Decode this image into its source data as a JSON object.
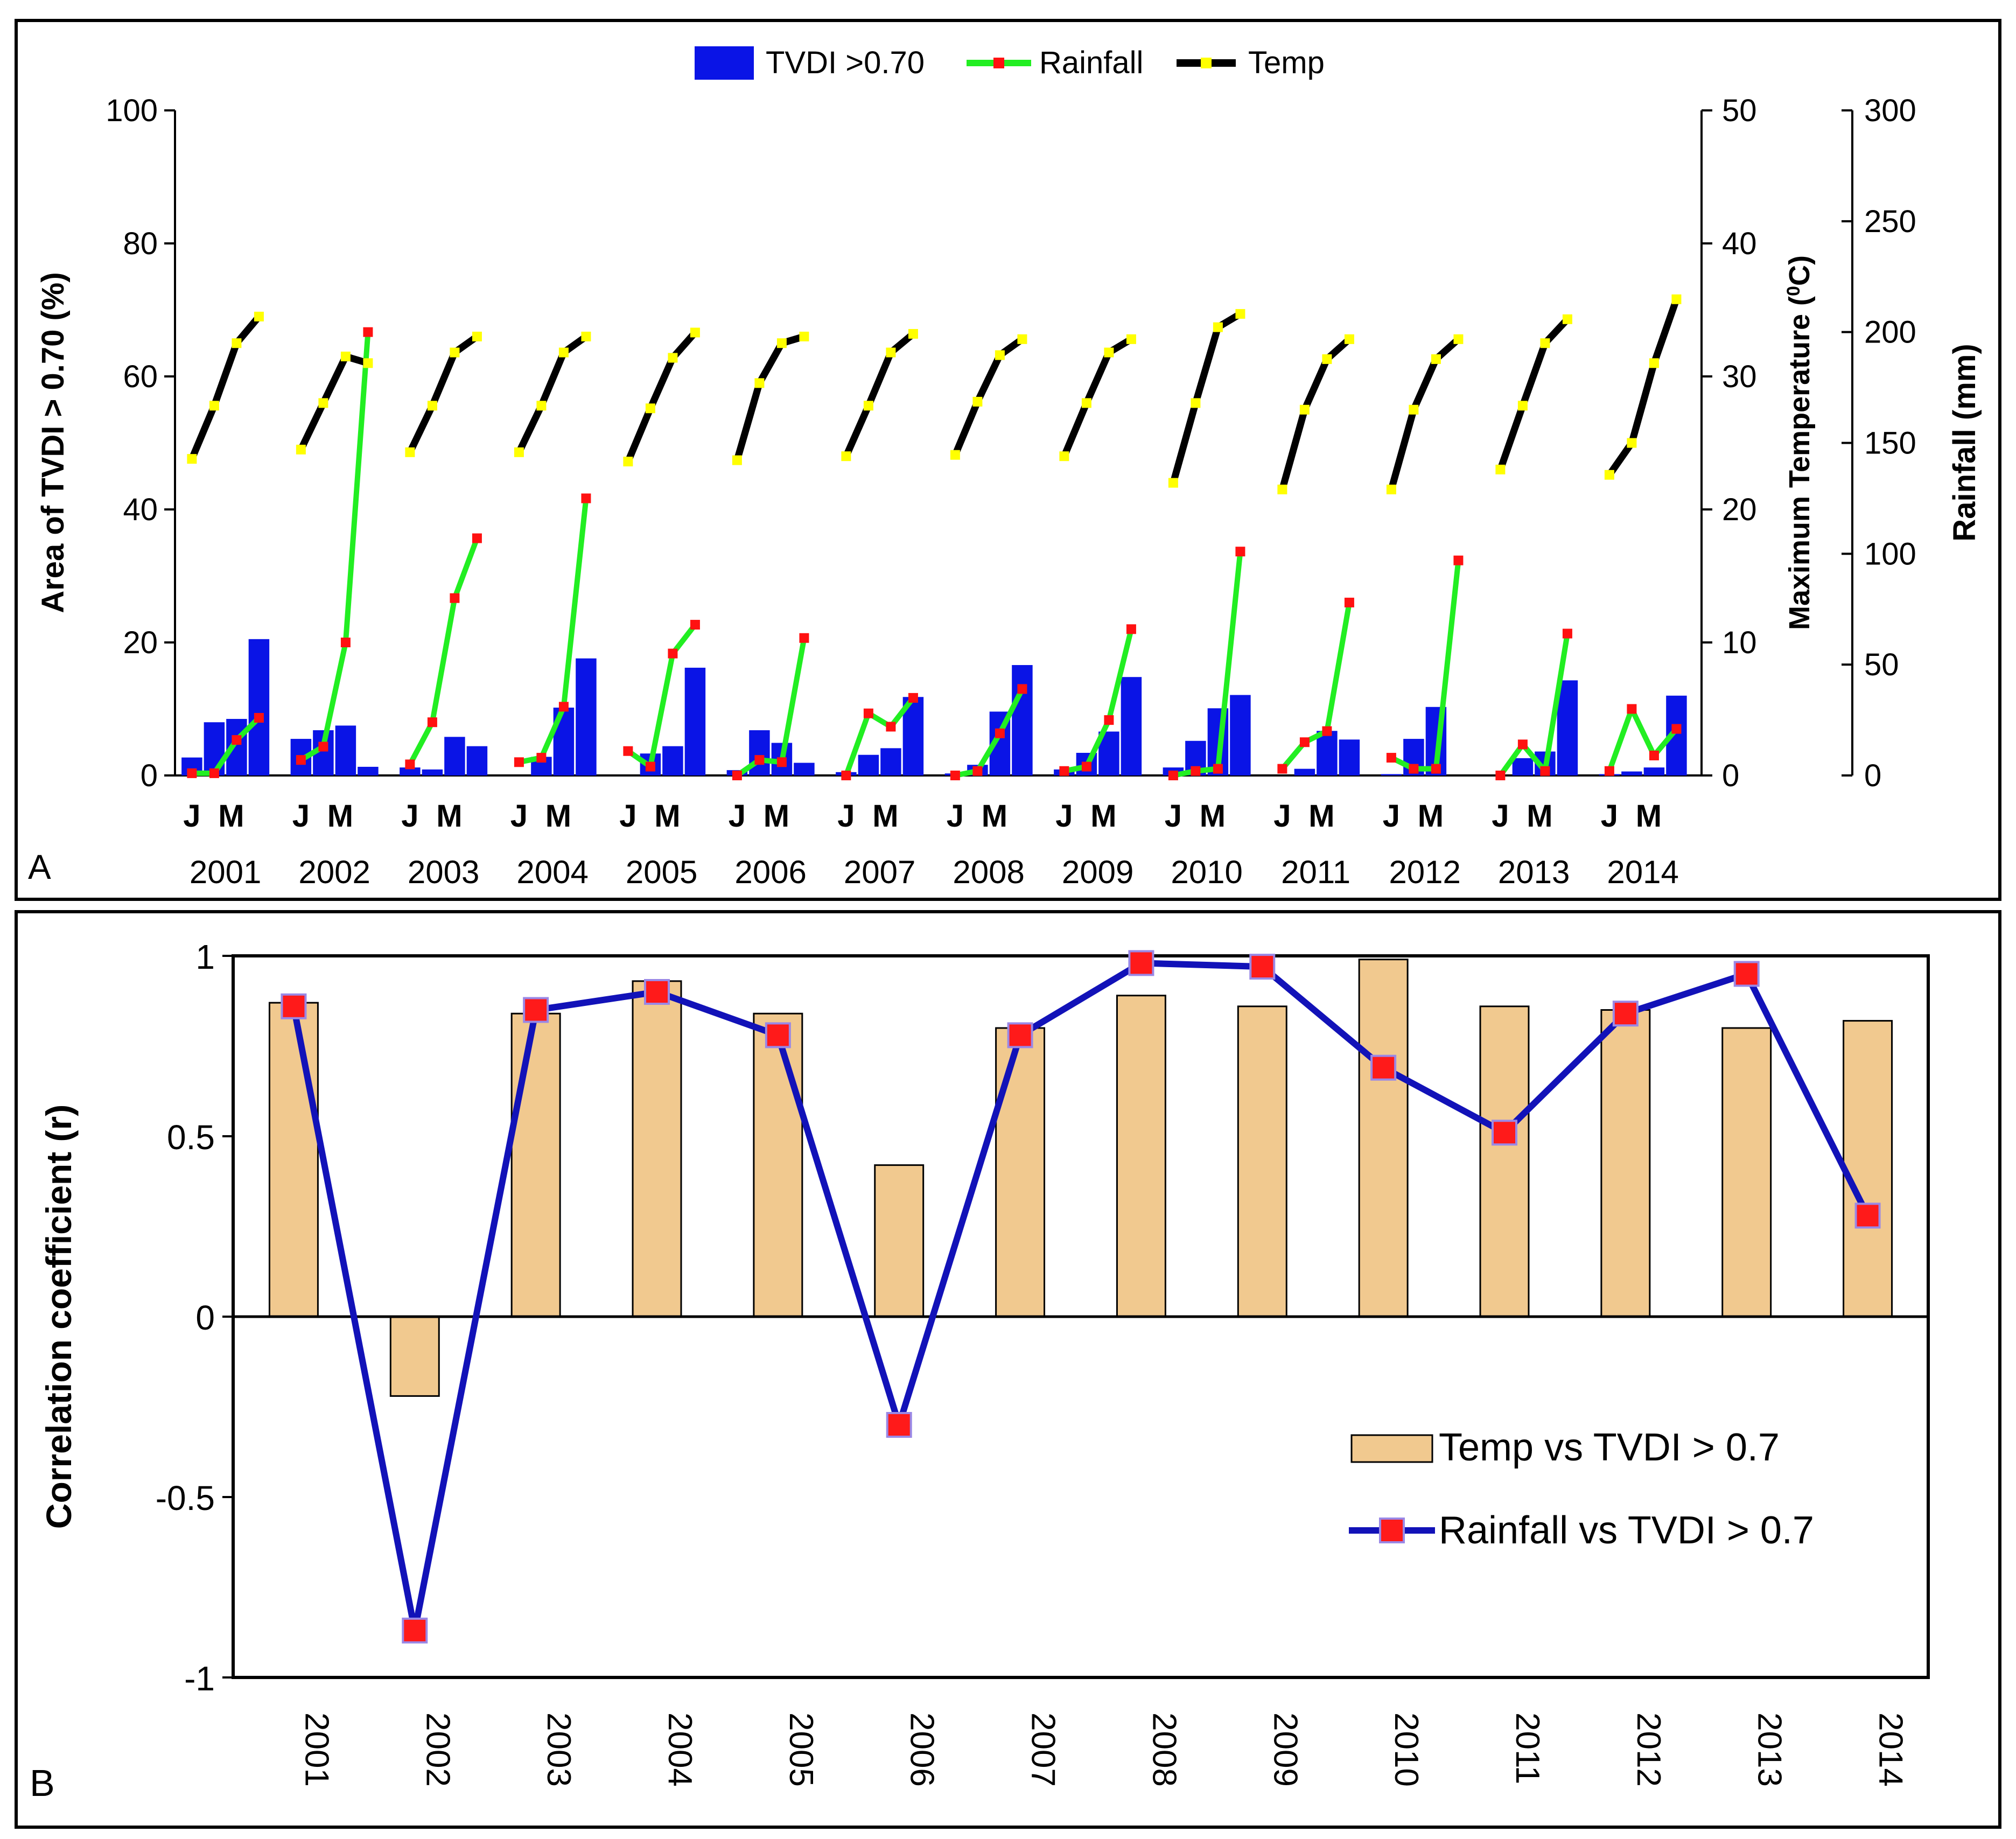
{
  "chart_data": [
    {
      "type": "bar+line",
      "panel_label": "A",
      "legend": {
        "position": "top-center",
        "items": [
          {
            "label": "TVDI >0.70",
            "kind": "bar"
          },
          {
            "label": "Rainfall",
            "kind": "line"
          },
          {
            "label": "Temp",
            "kind": "line"
          }
        ]
      },
      "ylabel_left": "Area of TVDI > 0.70 (%)",
      "ylabel_temp_main": "Maximum Temperature (",
      "ylabel_temp_sup": "0",
      "ylabel_temp_end": "C)",
      "ylabel_rain": "Rainfall (mm)",
      "ylim_left": [
        0,
        100
      ],
      "ylim_temp": [
        0,
        50
      ],
      "ylim_rain": [
        0,
        300
      ],
      "yticks_left": [
        "0",
        "20",
        "40",
        "60",
        "80",
        "100"
      ],
      "yticks_temp": [
        "0",
        "10",
        "20",
        "30",
        "40",
        "50"
      ],
      "yticks_rain": [
        "0",
        "50",
        "100",
        "150",
        "200",
        "250",
        "300"
      ],
      "month_labels": [
        "J",
        "M"
      ],
      "years": [
        {
          "year": "2001",
          "tvdi": [
            2.7,
            8,
            8.5,
            20.5
          ],
          "temp": [
            23.8,
            27.8,
            32.5,
            34.5
          ],
          "rain": [
            1,
            1,
            16,
            26
          ]
        },
        {
          "year": "2002",
          "tvdi": [
            5.5,
            6.8,
            7.5,
            1.3
          ],
          "temp": [
            24.5,
            28,
            31.5,
            31
          ],
          "rain": [
            7,
            13,
            60,
            200
          ]
        },
        {
          "year": "2003",
          "tvdi": [
            1.2,
            0.9,
            5.8,
            4.4
          ],
          "temp": [
            24.3,
            27.8,
            31.8,
            33
          ],
          "rain": [
            5,
            24,
            80,
            107
          ]
        },
        {
          "year": "2004",
          "tvdi": [
            0,
            2.8,
            10.2,
            17.6
          ],
          "temp": [
            24.3,
            27.8,
            31.8,
            33
          ],
          "rain": [
            6,
            8,
            31,
            125
          ]
        },
        {
          "year": "2005",
          "tvdi": [
            0,
            3.3,
            4.4,
            16.2
          ],
          "temp": [
            23.6,
            27.6,
            31.4,
            33.3
          ],
          "rain": [
            11,
            4,
            55,
            68
          ]
        },
        {
          "year": "2006",
          "tvdi": [
            0.8,
            6.8,
            4.9,
            1.9
          ],
          "temp": [
            23.7,
            29.5,
            32.5,
            33
          ],
          "rain": [
            0,
            7,
            6,
            62
          ]
        },
        {
          "year": "2007",
          "tvdi": [
            0.5,
            3.1,
            4.1,
            11.8
          ],
          "temp": [
            24,
            27.8,
            31.8,
            33.2
          ],
          "rain": [
            0,
            28,
            22,
            35
          ]
        },
        {
          "year": "2008",
          "tvdi": [
            0.3,
            1.6,
            9.6,
            16.6
          ],
          "temp": [
            24.1,
            28.1,
            31.6,
            32.8
          ],
          "rain": [
            0,
            2,
            19,
            39
          ]
        },
        {
          "year": "2009",
          "tvdi": [
            0.9,
            3.4,
            6.6,
            14.8
          ],
          "temp": [
            24,
            28,
            31.8,
            32.8
          ],
          "rain": [
            2,
            4,
            25,
            66
          ]
        },
        {
          "year": "2010",
          "tvdi": [
            1.2,
            5.2,
            10.1,
            12.1
          ],
          "temp": [
            22,
            28,
            33.7,
            34.7
          ],
          "rain": [
            0,
            2,
            3,
            101
          ]
        },
        {
          "year": "2011",
          "tvdi": [
            0,
            1,
            6.7,
            5.4
          ],
          "temp": [
            21.5,
            27.5,
            31.3,
            32.8
          ],
          "rain": [
            3,
            15,
            20,
            78
          ]
        },
        {
          "year": "2012",
          "tvdi": [
            0.2,
            5.5,
            10.3,
            0
          ],
          "temp": [
            21.5,
            27.5,
            31.3,
            32.8
          ],
          "rain": [
            8,
            3,
            3,
            97
          ]
        },
        {
          "year": "2013",
          "tvdi": [
            0,
            2.6,
            3.6,
            14.3
          ],
          "temp": [
            23,
            27.8,
            32.5,
            34.3
          ],
          "rain": [
            0,
            14,
            2,
            64
          ]
        },
        {
          "year": "2014",
          "tvdi": [
            0.2,
            0.6,
            1.2,
            12
          ],
          "temp": [
            22.6,
            25,
            31,
            35.8
          ],
          "rain": [
            2,
            30,
            9,
            21
          ]
        }
      ]
    },
    {
      "type": "bar+line",
      "panel_label": "B",
      "ylabel": "Correlation coefficient (r)",
      "ylim": [
        -1,
        1
      ],
      "yticks": [
        "-1",
        "-0.5",
        "0",
        "0.5",
        "1"
      ],
      "categories": [
        "2001",
        "2002",
        "2003",
        "2004",
        "2005",
        "2006",
        "2007",
        "2008",
        "2009",
        "2010",
        "2011",
        "2012",
        "2013",
        "2014"
      ],
      "series": [
        {
          "name": "Temp vs TVDI > 0.7",
          "kind": "bar",
          "values": [
            0.87,
            -0.22,
            0.84,
            0.93,
            0.84,
            0.42,
            0.8,
            0.89,
            0.86,
            0.99,
            0.86,
            0.85,
            0.8,
            0.82
          ]
        },
        {
          "name": "Rainfall vs TVDI > 0.7",
          "kind": "line",
          "values": [
            0.86,
            -0.87,
            0.85,
            0.9,
            0.78,
            -0.3,
            0.78,
            0.98,
            0.97,
            0.69,
            0.51,
            0.84,
            0.95,
            0.28
          ]
        }
      ],
      "legend": {
        "position": "lower-right"
      }
    }
  ],
  "colors": {
    "tvdi_bar": "#0a14e6",
    "rain_line": "#22ee22",
    "rain_marker": "#ff1111",
    "temp_line": "#000000",
    "temp_marker": "#ffff00",
    "corr_bar": "#f1c98f",
    "corr_line": "#1212b8",
    "corr_marker": "#ff1a1a"
  }
}
